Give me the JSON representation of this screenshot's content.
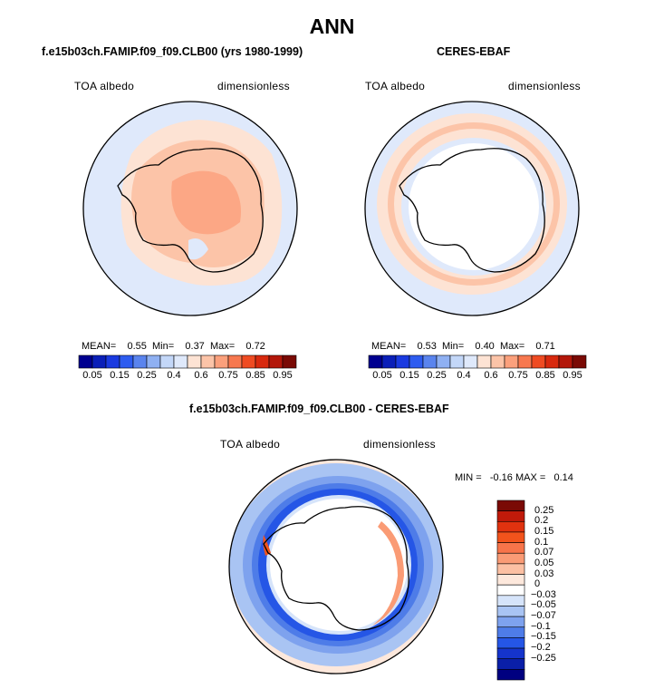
{
  "title": "ANN",
  "panels": [
    {
      "title": "f.e15b03ch.FAMIP.f09_f09.CLB00 (yrs 1980-1999)",
      "left_label": "TOA albedo",
      "right_label": "dimensionless",
      "stats": {
        "mean_label": "MEAN=",
        "mean": "0.55",
        "min_label": "Min=",
        "min": "0.37",
        "max_label": "Max=",
        "max": "0.72"
      }
    },
    {
      "title": "CERES-EBAF",
      "left_label": "TOA albedo",
      "right_label": "dimensionless",
      "stats": {
        "mean_label": "MEAN=",
        "mean": "0.53",
        "min_label": "Min=",
        "min": "0.40",
        "max_label": "Max=",
        "max": "0.71"
      }
    },
    {
      "title": "f.e15b03ch.FAMIP.f09_f09.CLB00 - CERES-EBAF",
      "left_label": "TOA albedo",
      "right_label": "dimensionless",
      "stats": {
        "min_label": "MIN =",
        "min": "-0.16",
        "max_label": "MAX =",
        "max": "0.14"
      }
    }
  ],
  "colorbar_abs": {
    "labels": [
      "0.05",
      "0.15",
      "0.25",
      "0.4",
      "0.6",
      "0.75",
      "0.85",
      "0.95"
    ],
    "colors": [
      "#000090",
      "#0a1fb8",
      "#1a3ae0",
      "#2e5cf0",
      "#5a84ee",
      "#8fb0f2",
      "#c3d7f8",
      "#dfe9fb",
      "#fde3d4",
      "#fcc4a8",
      "#fba07c",
      "#f7784f",
      "#ef4b22",
      "#d8290e",
      "#b3170a",
      "#7a0a05"
    ]
  },
  "colorbar_diff": {
    "labels": [
      "0.25",
      "0.2",
      "0.15",
      "0.1",
      "0.07",
      "0.05",
      "0.03",
      "0",
      "-0.03",
      "-0.05",
      "-0.07",
      "-0.1",
      "-0.15",
      "-0.2",
      "-0.25"
    ],
    "colors": [
      "#7a0a05",
      "#c01a0a",
      "#e0320f",
      "#f2531c",
      "#f7744a",
      "#fa9b75",
      "#fcc0a3",
      "#fde8dc",
      "#ffffff",
      "#d6e4fa",
      "#a9c4f3",
      "#7ea2ee",
      "#4e7ce8",
      "#2556e6",
      "#1534cc",
      "#0a1fa8",
      "#000080"
    ]
  }
}
